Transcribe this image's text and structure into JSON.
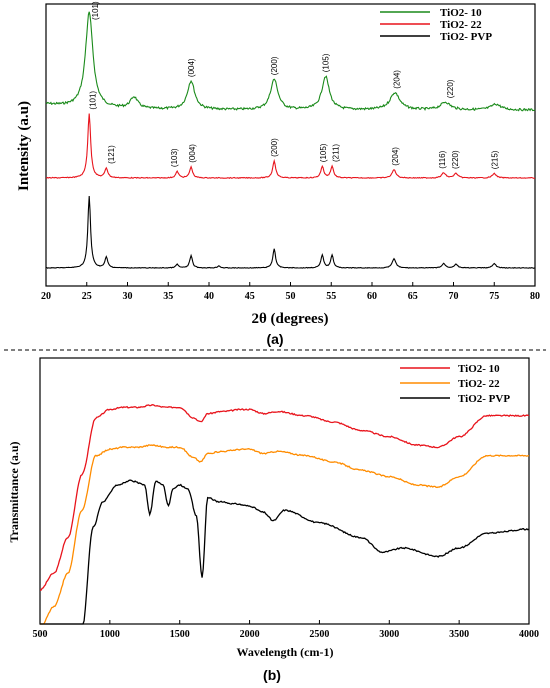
{
  "chart_data": [
    {
      "type": "line",
      "panel_label": "(a)",
      "xlabel": "2θ (degrees)",
      "ylabel": "Intensity (a.u)",
      "xlim": [
        20,
        80
      ],
      "xticks": [
        "20",
        "25",
        "30",
        "35",
        "40",
        "45",
        "50",
        "55",
        "60",
        "65",
        "70",
        "75",
        "80"
      ],
      "legend_position": "top-right",
      "grid": false,
      "series": [
        {
          "name": "TiO2- 10",
          "color": "#1a8a1a",
          "peaks": [
            [
              25.3,
              1.0
            ],
            [
              30.8,
              0.12
            ],
            [
              37.8,
              0.3
            ],
            [
              48.0,
              0.32
            ],
            [
              54.3,
              0.35
            ],
            [
              62.8,
              0.18
            ],
            [
              69.0,
              0.08
            ],
            [
              75.2,
              0.06
            ]
          ]
        },
        {
          "name": "TiO2- 22",
          "color": "#e8141c",
          "peaks": [
            [
              25.3,
              1.0
            ],
            [
              27.4,
              0.15
            ],
            [
              36.1,
              0.1
            ],
            [
              37.8,
              0.17
            ],
            [
              48.0,
              0.27
            ],
            [
              53.9,
              0.18
            ],
            [
              55.1,
              0.18
            ],
            [
              62.7,
              0.13
            ],
            [
              68.8,
              0.08
            ],
            [
              70.3,
              0.07
            ],
            [
              75.0,
              0.07
            ]
          ]
        },
        {
          "name": "TiO2- PVP",
          "color": "#000000",
          "peaks": [
            [
              25.3,
              1.0
            ],
            [
              27.4,
              0.15
            ],
            [
              36.1,
              0.05
            ],
            [
              37.8,
              0.17
            ],
            [
              41.2,
              0.03
            ],
            [
              48.0,
              0.27
            ],
            [
              53.9,
              0.18
            ],
            [
              55.1,
              0.18
            ],
            [
              62.7,
              0.13
            ],
            [
              68.8,
              0.06
            ],
            [
              70.3,
              0.05
            ],
            [
              75.0,
              0.06
            ]
          ]
        }
      ],
      "annotations": [
        {
          "text": "(101)",
          "x": 26.0,
          "series": 0
        },
        {
          "text": "(004)",
          "x": 37.8,
          "series": 0
        },
        {
          "text": "(200)",
          "x": 48.0,
          "series": 0
        },
        {
          "text": "(105)",
          "x": 54.3,
          "series": 0
        },
        {
          "text": "(204)",
          "x": 63.0,
          "series": 0
        },
        {
          "text": "(220)",
          "x": 69.6,
          "series": 0
        },
        {
          "text": "(101)",
          "x": 25.7,
          "series": 1
        },
        {
          "text": "(121)",
          "x": 28.0,
          "series": 1
        },
        {
          "text": "(103)",
          "x": 35.7,
          "series": 1
        },
        {
          "text": "(004)",
          "x": 37.9,
          "series": 1
        },
        {
          "text": "(200)",
          "x": 48.0,
          "series": 1
        },
        {
          "text": "(105)",
          "x": 54.0,
          "series": 1
        },
        {
          "text": "(211)",
          "x": 55.5,
          "series": 1
        },
        {
          "text": "(204)",
          "x": 62.8,
          "series": 1
        },
        {
          "text": "(116)",
          "x": 68.6,
          "series": 1
        },
        {
          "text": "(220)",
          "x": 70.2,
          "series": 1
        },
        {
          "text": "(215)",
          "x": 75.0,
          "series": 1
        }
      ]
    },
    {
      "type": "line",
      "panel_label": "(b)",
      "xlabel": "Wavelength (cm-1)",
      "ylabel": "Transmittance (a.u)",
      "xlim": [
        500,
        4000
      ],
      "xticks": [
        "500",
        "1000",
        "1500",
        "2000",
        "2500",
        "3000",
        "3500",
        "4000"
      ],
      "legend_position": "top-right",
      "grid": false,
      "series": [
        {
          "name": "TiO2- 10",
          "color": "#e8141c",
          "x": [
            500,
            600,
            700,
            800,
            900,
            1000,
            1100,
            1200,
            1300,
            1400,
            1500,
            1600,
            1650,
            1700,
            1800,
            1950,
            2000,
            2100,
            2200,
            2400,
            2600,
            2800,
            3000,
            3200,
            3350,
            3500,
            3700,
            4000
          ],
          "y": [
            0.0,
            0.08,
            0.25,
            0.55,
            0.82,
            0.86,
            0.87,
            0.87,
            0.88,
            0.87,
            0.87,
            0.82,
            0.8,
            0.84,
            0.85,
            0.86,
            0.86,
            0.84,
            0.85,
            0.83,
            0.8,
            0.76,
            0.73,
            0.69,
            0.68,
            0.73,
            0.83,
            0.83
          ]
        },
        {
          "name": "TiO2- 22",
          "color": "#ff8c00",
          "x": [
            500,
            600,
            700,
            800,
            900,
            1000,
            1100,
            1200,
            1300,
            1400,
            1500,
            1600,
            1650,
            1700,
            1800,
            1950,
            2000,
            2100,
            2200,
            2400,
            2600,
            2800,
            3000,
            3200,
            3350,
            3500,
            3700,
            4000
          ],
          "y": [
            -0.18,
            -0.08,
            0.08,
            0.38,
            0.64,
            0.67,
            0.68,
            0.68,
            0.69,
            0.68,
            0.68,
            0.63,
            0.61,
            0.65,
            0.66,
            0.67,
            0.67,
            0.65,
            0.66,
            0.64,
            0.61,
            0.57,
            0.54,
            0.5,
            0.49,
            0.54,
            0.64,
            0.64
          ]
        },
        {
          "name": "TiO2- PVP",
          "color": "#000000",
          "x": [
            500,
            600,
            700,
            800,
            880,
            950,
            1050,
            1150,
            1250,
            1285,
            1330,
            1380,
            1420,
            1450,
            1500,
            1560,
            1620,
            1660,
            1700,
            1780,
            1900,
            2000,
            2100,
            2170,
            2250,
            2500,
            2800,
            2950,
            3100,
            3350,
            3500,
            3700,
            4000
          ],
          "y": [
            -0.75,
            -0.65,
            -0.45,
            -0.2,
            0.3,
            0.42,
            0.5,
            0.52,
            0.5,
            0.36,
            0.52,
            0.5,
            0.4,
            0.48,
            0.5,
            0.48,
            0.35,
            0.06,
            0.44,
            0.42,
            0.41,
            0.4,
            0.37,
            0.33,
            0.38,
            0.32,
            0.25,
            0.18,
            0.2,
            0.16,
            0.2,
            0.27,
            0.29
          ]
        }
      ]
    }
  ]
}
